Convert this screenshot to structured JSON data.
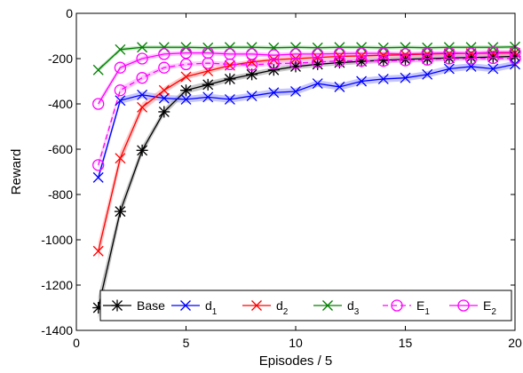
{
  "chart_data": {
    "type": "line",
    "title": "",
    "xlabel": "Episodes / 5",
    "ylabel": "Reward",
    "xlim": [
      0,
      20
    ],
    "ylim": [
      -1400,
      0
    ],
    "x_ticks": [
      0,
      5,
      10,
      15,
      20
    ],
    "y_ticks": [
      0,
      -200,
      -400,
      -600,
      -800,
      -1000,
      -1200,
      -1400
    ],
    "x_tick_labels": [
      "0",
      "5",
      "10",
      "15",
      "20"
    ],
    "y_tick_labels": [
      "0",
      "-200",
      "-400",
      "-600",
      "-800",
      "-1000",
      "-1200",
      "-1400"
    ],
    "grid": false,
    "legend_position": "bottom",
    "x": [
      1,
      2,
      3,
      4,
      5,
      6,
      7,
      8,
      9,
      10,
      11,
      12,
      13,
      14,
      15,
      16,
      17,
      18,
      19,
      20
    ],
    "series": [
      {
        "name": "Base",
        "legend_main": "Base",
        "legend_sub": "",
        "color": "#000000",
        "band_color": "#999999",
        "marker": "star",
        "linestyle": "solid",
        "values": [
          -1300,
          -875,
          -605,
          -435,
          -340,
          -315,
          -290,
          -270,
          -250,
          -235,
          -225,
          -218,
          -212,
          -207,
          -203,
          -200,
          -197,
          -195,
          -193,
          -190
        ],
        "band": [
          50,
          30,
          20,
          15,
          15,
          15,
          12,
          12,
          12,
          12,
          12,
          12,
          12,
          12,
          12,
          12,
          12,
          12,
          12,
          12
        ]
      },
      {
        "name": "d1",
        "legend_main": "d",
        "legend_sub": "1",
        "color": "#0000ff",
        "band_color": "#9999ff",
        "marker": "x",
        "linestyle": "solid",
        "values": [
          -725,
          -385,
          -360,
          -375,
          -380,
          -370,
          -380,
          -365,
          -350,
          -345,
          -310,
          -325,
          -300,
          -290,
          -285,
          -270,
          -245,
          -235,
          -245,
          -225
        ],
        "band": [
          20,
          15,
          15,
          15,
          15,
          15,
          15,
          15,
          15,
          15,
          15,
          15,
          15,
          15,
          15,
          15,
          15,
          15,
          15,
          15
        ]
      },
      {
        "name": "d2",
        "legend_main": "d",
        "legend_sub": "2",
        "color": "#ff0000",
        "band_color": "#ff9999",
        "marker": "x",
        "linestyle": "solid",
        "values": [
          -1050,
          -640,
          -415,
          -340,
          -280,
          -255,
          -230,
          -215,
          -205,
          -200,
          -195,
          -190,
          -188,
          -185,
          -183,
          -180,
          -178,
          -177,
          -176,
          -175
        ],
        "band": [
          40,
          30,
          20,
          15,
          12,
          12,
          10,
          10,
          10,
          10,
          10,
          10,
          10,
          10,
          10,
          10,
          10,
          10,
          10,
          10
        ]
      },
      {
        "name": "d3",
        "legend_main": "d",
        "legend_sub": "3",
        "color": "#008000",
        "band_color": "#88cc88",
        "marker": "x",
        "linestyle": "solid",
        "values": [
          -250,
          -160,
          -150,
          -150,
          -150,
          -152,
          -150,
          -150,
          -152,
          -150,
          -152,
          -150,
          -150,
          -152,
          -150,
          -152,
          -150,
          -150,
          -150,
          -148
        ],
        "band": [
          10,
          8,
          8,
          8,
          8,
          8,
          8,
          8,
          8,
          8,
          8,
          8,
          8,
          8,
          8,
          8,
          8,
          8,
          8,
          8
        ]
      },
      {
        "name": "E1",
        "legend_main": "E",
        "legend_sub": "1",
        "color": "#ff00ff",
        "band_color": "#ff99ff",
        "marker": "circle",
        "linestyle": "dashed",
        "values": [
          -670,
          -340,
          -285,
          -240,
          -225,
          -220,
          -225,
          -228,
          -222,
          -220,
          -215,
          -210,
          -210,
          -210,
          -208,
          -205,
          -200,
          -200,
          -198,
          -200
        ],
        "band": [
          20,
          15,
          12,
          10,
          10,
          10,
          10,
          10,
          10,
          10,
          10,
          10,
          10,
          10,
          10,
          10,
          10,
          10,
          10,
          10
        ]
      },
      {
        "name": "E2",
        "legend_main": "E",
        "legend_sub": "2",
        "color": "#ff00ff",
        "band_color": "#ff99ff",
        "marker": "circle",
        "linestyle": "solid",
        "values": [
          -400,
          -240,
          -200,
          -180,
          -175,
          -175,
          -180,
          -180,
          -185,
          -180,
          -180,
          -178,
          -177,
          -177,
          -180,
          -177,
          -175,
          -177,
          -172,
          -172
        ],
        "band": [
          15,
          12,
          10,
          10,
          10,
          10,
          10,
          10,
          10,
          10,
          10,
          10,
          10,
          10,
          10,
          10,
          10,
          10,
          10,
          10
        ]
      }
    ]
  }
}
